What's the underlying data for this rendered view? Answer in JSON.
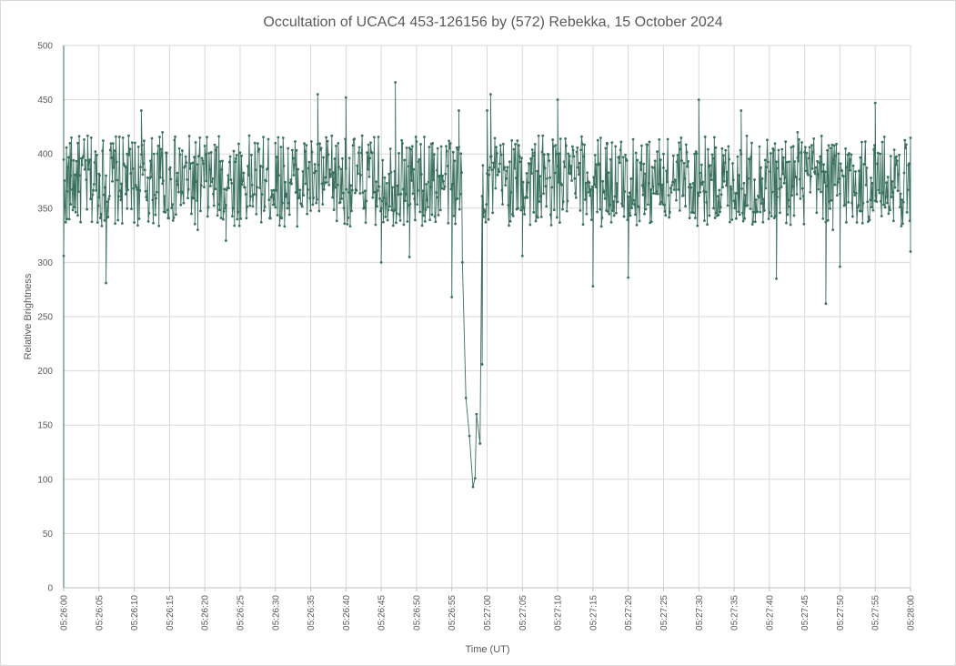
{
  "chart_data": {
    "type": "line",
    "title": "Occultation of UCAC4 453-126156 by (572) Rebekka, 15 October 2024",
    "xlabel": "Time (UT)",
    "ylabel": "Relative Brightness",
    "ylim": [
      0,
      500
    ],
    "y_ticks": [
      "0",
      "50",
      "100",
      "150",
      "200",
      "250",
      "300",
      "350",
      "400",
      "450",
      "500"
    ],
    "x_range": [
      "05:26:00",
      "05:28:00"
    ],
    "x_ticks": [
      "05:26:00",
      "05:26:05",
      "05:26:10",
      "05:26:15",
      "05:26:20",
      "05:26:25",
      "05:26:30",
      "05:26:35",
      "05:26:40",
      "05:26:45",
      "05:26:50",
      "05:26:55",
      "05:27:00",
      "05:27:05",
      "05:27:10",
      "05:27:15",
      "05:27:20",
      "05:27:25",
      "05:27:30",
      "05:27:35",
      "05:27:40",
      "05:27:45",
      "05:27:50",
      "05:27:55",
      "05:28:00"
    ],
    "grid": true,
    "legend": "none",
    "series_color": "#3a7060",
    "marker": "dot",
    "series": [
      {
        "name": "",
        "sample_interval_s": 0.1,
        "baseline_mean": 375,
        "baseline_scatter": 30,
        "x": [
          "05:26:00",
          "05:26:00.5",
          "05:26:01",
          "05:26:02",
          "05:26:05",
          "05:26:06",
          "05:26:09",
          "05:26:11",
          "05:26:14",
          "05:26:19",
          "05:26:23",
          "05:26:30",
          "05:26:36",
          "05:26:40",
          "05:26:45",
          "05:26:47",
          "05:26:49",
          "05:26:53",
          "05:26:55",
          "05:26:56",
          "05:26:56.5",
          "05:26:57",
          "05:26:57.5",
          "05:26:58",
          "05:26:58.3",
          "05:26:58.5",
          "05:26:59",
          "05:26:59.3",
          "05:27:00",
          "05:27:00.5",
          "05:27:05",
          "05:27:10",
          "05:27:15",
          "05:27:17",
          "05:27:20",
          "05:27:25",
          "05:27:30",
          "05:27:36",
          "05:27:41",
          "05:27:44",
          "05:27:48",
          "05:27:49",
          "05:27:50",
          "05:27:55",
          "05:27:58",
          "05:28:00"
        ],
        "y": [
          306,
          340,
          380,
          410,
          360,
          281,
          400,
          440,
          420,
          330,
          320,
          410,
          455,
          452,
          300,
          466,
          305,
          360,
          268,
          440,
          300,
          175,
          140,
          93,
          101,
          160,
          133,
          206,
          440,
          455,
          306,
          450,
          278,
          410,
          286,
          400,
          450,
          440,
          285,
          420,
          262,
          330,
          296,
          447,
          390,
          310
        ]
      }
    ]
  }
}
